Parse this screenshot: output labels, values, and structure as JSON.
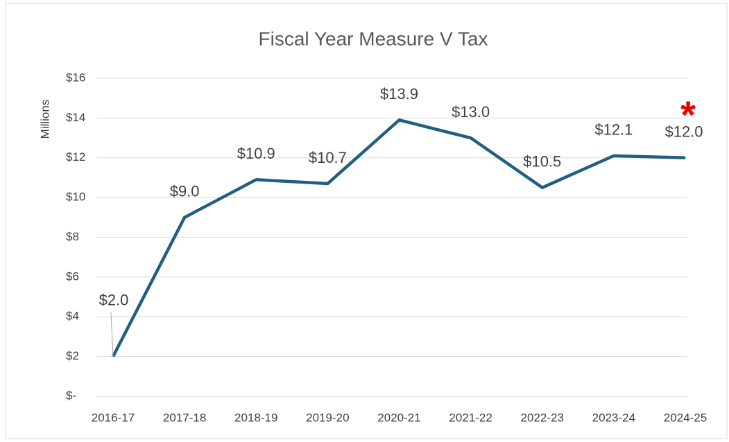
{
  "chart_data": {
    "type": "line",
    "title": "Fiscal Year Measure V Tax",
    "y_label": "Millions",
    "categories": [
      "2016-17",
      "2017-18",
      "2018-19",
      "2019-20",
      "2020-21",
      "2021-22",
      "2022-23",
      "2023-24",
      "2024-25"
    ],
    "series": [
      {
        "name": "Measure V Tax",
        "color": "#1f5f80",
        "values": [
          2.0,
          9.0,
          10.9,
          10.7,
          13.9,
          13.0,
          10.5,
          12.1,
          12.0
        ],
        "value_labels": [
          "$2.0",
          "$9.0",
          "$10.9",
          "$10.7",
          "$13.9",
          "$13.0",
          "$10.5",
          "$12.1",
          "$12.0"
        ]
      }
    ],
    "ylim": [
      0,
      16
    ],
    "yticks": [
      {
        "value": 0,
        "label": "$-"
      },
      {
        "value": 2,
        "label": "$2"
      },
      {
        "value": 4,
        "label": "$4"
      },
      {
        "value": 6,
        "label": "$6"
      },
      {
        "value": 8,
        "label": "$8"
      },
      {
        "value": 10,
        "label": "$10"
      },
      {
        "value": 12,
        "label": "$12"
      },
      {
        "value": 14,
        "label": "$14"
      },
      {
        "value": 16,
        "label": "$16"
      }
    ],
    "grid": true,
    "annotations": [
      {
        "text": "*",
        "color": "#ee0000"
      }
    ]
  }
}
